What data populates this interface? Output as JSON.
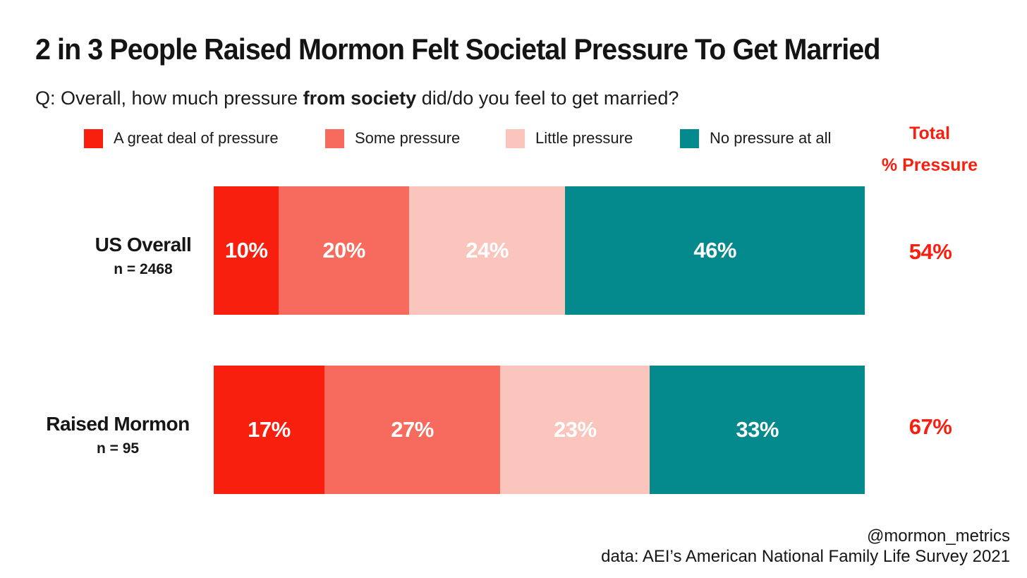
{
  "title": "2 in 3 People Raised Mormon Felt Societal Pressure To Get Married",
  "subtitle": {
    "prefix": "Q: Overall, how much pressure ",
    "emphasis": "from society",
    "suffix": " did/do you feel to get married?"
  },
  "totals_header": {
    "line1": "Total",
    "line2": "% Pressure"
  },
  "rows": [
    {
      "category": "US Overall",
      "n_label": "n = 2468",
      "total_label": "54%"
    },
    {
      "category": "Raised Mormon",
      "n_label": "n = 95",
      "total_label": "67%"
    }
  ],
  "footer": {
    "handle": "@mormon_metrics",
    "source": "data: AEI’s American National Family Life Survey 2021"
  },
  "colors": {
    "accent_red": "#f81f0e",
    "great_deal": "#f81f0e",
    "some_pressure": "#f76b5e",
    "little_pressure": "#fac5bd",
    "no_pressure": "#048a8d",
    "text": "#161616",
    "bar_value_text": "#ffffff",
    "background": "#ffffff"
  },
  "chart_data": {
    "type": "bar",
    "orientation": "horizontal_stacked",
    "title": "2 in 3 People Raised Mormon Felt Societal Pressure To Get Married",
    "question": "Q: Overall, how much pressure from society did/do you feel to get married?",
    "categories": [
      "US Overall",
      "Raised Mormon"
    ],
    "sample_sizes": [
      2468,
      95
    ],
    "series": [
      {
        "name": "A great deal of pressure",
        "color": "#f81f0e",
        "values": [
          10,
          17
        ]
      },
      {
        "name": "Some pressure",
        "color": "#f76b5e",
        "values": [
          20,
          27
        ]
      },
      {
        "name": "Little pressure",
        "color": "#fac5bd",
        "values": [
          24,
          23
        ]
      },
      {
        "name": "No pressure at all",
        "color": "#048a8d",
        "values": [
          46,
          33
        ]
      }
    ],
    "totals_pct_pressure": [
      54,
      67
    ],
    "xlim": [
      0,
      100
    ],
    "value_label_format": "percent",
    "legend_position": "top",
    "grid": false
  }
}
